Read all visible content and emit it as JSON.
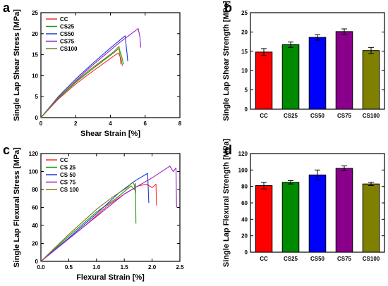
{
  "chart_data": [
    {
      "panel": "a",
      "type": "line",
      "xlabel": "Shear Strain [%]",
      "ylabel": "Single Lap Shear Stress [MPa]",
      "xlim": [
        0,
        8
      ],
      "ylim": [
        0,
        25
      ],
      "xticks": [
        0,
        2,
        4,
        6,
        8
      ],
      "yticks": [
        0,
        5,
        10,
        15,
        20,
        25
      ],
      "legend": "top-left",
      "series": [
        {
          "name": "CC",
          "color": "#ff2a2a",
          "points": [
            [
              0,
              0
            ],
            [
              1,
              4.4
            ],
            [
              2,
              8.0
            ],
            [
              3,
              11.1
            ],
            [
              4.2,
              14.7
            ],
            [
              4.45,
              15.4
            ],
            [
              4.6,
              14.2
            ],
            [
              4.7,
              12.3
            ]
          ]
        },
        {
          "name": "CS25",
          "color": "#1e9a1e",
          "points": [
            [
              0,
              0
            ],
            [
              1,
              4.6
            ],
            [
              2,
              8.4
            ],
            [
              3,
              11.7
            ],
            [
              4.3,
              15.8
            ],
            [
              4.5,
              16.5
            ],
            [
              4.65,
              14.6
            ],
            [
              4.75,
              12.7
            ]
          ]
        },
        {
          "name": "CS50",
          "color": "#1e3ad8",
          "points": [
            [
              0,
              0
            ],
            [
              1,
              5.0
            ],
            [
              2,
              9.2
            ],
            [
              3,
              13.0
            ],
            [
              4,
              16.6
            ],
            [
              4.85,
              19.5
            ],
            [
              4.95,
              15.5
            ],
            [
              5.0,
              13.4
            ]
          ]
        },
        {
          "name": "CS75",
          "color": "#9a22c8",
          "points": [
            [
              0,
              0
            ],
            [
              1,
              4.7
            ],
            [
              2,
              8.8
            ],
            [
              3,
              12.6
            ],
            [
              4.5,
              17.8
            ],
            [
              5.6,
              21.2
            ],
            [
              5.7,
              19.2
            ],
            [
              5.75,
              16.7
            ]
          ]
        },
        {
          "name": "CS100",
          "color": "#7a7a1a",
          "points": [
            [
              0,
              0
            ],
            [
              1,
              4.8
            ],
            [
              2,
              8.6
            ],
            [
              3,
              12.0
            ],
            [
              4.2,
              15.7
            ],
            [
              4.5,
              17.0
            ],
            [
              4.55,
              15.0
            ],
            [
              4.6,
              12.7
            ]
          ]
        }
      ]
    },
    {
      "panel": "b",
      "type": "bar",
      "xlabel": "",
      "ylabel": "Single Lap Shear Strength [MPa]",
      "categories": [
        "CC",
        "CS25",
        "CS50",
        "CS75",
        "CS100"
      ],
      "values": [
        14.8,
        16.7,
        18.6,
        20.1,
        15.2
      ],
      "errors": [
        0.9,
        0.7,
        0.7,
        0.7,
        0.8
      ],
      "colors": [
        "#ff0000",
        "#008a00",
        "#0000ff",
        "#8a008a",
        "#808000"
      ],
      "ylim": [
        0,
        25
      ],
      "yticks": [
        0,
        5,
        10,
        15,
        20,
        25
      ]
    },
    {
      "panel": "c",
      "type": "line",
      "xlabel": "Flexural Strain [%]",
      "ylabel": "Single Lap Flexural Stress [MPa]",
      "xlim": [
        0,
        2.5
      ],
      "ylim": [
        0,
        120
      ],
      "xticks": [
        "0.0",
        "0.5",
        "1.0",
        "1.5",
        "2.0",
        "2.5"
      ],
      "yticks": [
        0,
        20,
        40,
        60,
        80,
        100,
        120
      ],
      "legend": "top-left",
      "series": [
        {
          "name": "CC",
          "color": "#ff2a2a",
          "points": [
            [
              0,
              0
            ],
            [
              0.4,
              20
            ],
            [
              0.8,
              40
            ],
            [
              1.2,
              62
            ],
            [
              1.5,
              75
            ],
            [
              1.75,
              84
            ],
            [
              1.9,
              86
            ],
            [
              2.0,
              82
            ],
            [
              2.07,
              86
            ],
            [
              2.08,
              62
            ]
          ]
        },
        {
          "name": "CS 25",
          "color": "#1e9a1e",
          "points": [
            [
              0,
              0
            ],
            [
              0.5,
              28
            ],
            [
              1.0,
              55
            ],
            [
              1.35,
              70
            ],
            [
              1.62,
              84
            ],
            [
              1.68,
              80
            ],
            [
              1.7,
              87
            ],
            [
              1.71,
              42
            ]
          ]
        },
        {
          "name": "CS 50",
          "color": "#1e3ad8",
          "points": [
            [
              0,
              0
            ],
            [
              0.5,
              26
            ],
            [
              1.0,
              53
            ],
            [
              1.4,
              76
            ],
            [
              1.7,
              90
            ],
            [
              1.92,
              98
            ],
            [
              1.94,
              65
            ]
          ]
        },
        {
          "name": "CS 75",
          "color": "#9a22c8",
          "points": [
            [
              0,
              0
            ],
            [
              0.5,
              25
            ],
            [
              1.0,
              50
            ],
            [
              1.5,
              75
            ],
            [
              2.0,
              93
            ],
            [
              2.32,
              106
            ],
            [
              2.38,
              100
            ],
            [
              2.43,
              104
            ],
            [
              2.44,
              60
            ]
          ]
        },
        {
          "name": "CS 100",
          "color": "#7a7a1a",
          "points": [
            [
              0,
              0
            ],
            [
              0.5,
              30
            ],
            [
              1.0,
              58
            ],
            [
              1.3,
              72
            ],
            [
              1.55,
              82
            ],
            [
              1.65,
              88
            ],
            [
              1.68,
              85
            ],
            [
              1.7,
              75
            ]
          ]
        }
      ]
    },
    {
      "panel": "d",
      "type": "bar",
      "xlabel": "",
      "ylabel": "Single Lap Flexural Strength [MPa]",
      "categories": [
        "CC",
        "CS25",
        "CS50",
        "CS75",
        "CS100"
      ],
      "values": [
        81,
        85,
        94,
        102,
        83
      ],
      "errors": [
        4,
        2,
        6,
        3,
        2
      ],
      "colors": [
        "#ff0000",
        "#008a00",
        "#0000ff",
        "#8a008a",
        "#808000"
      ],
      "ylim": [
        0,
        120
      ],
      "yticks": [
        0,
        20,
        40,
        60,
        80,
        100,
        120
      ]
    }
  ]
}
